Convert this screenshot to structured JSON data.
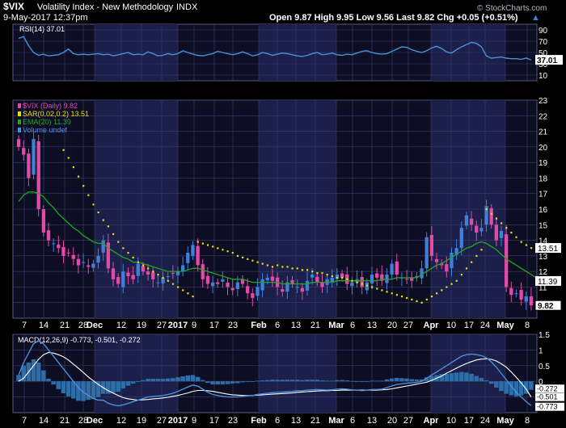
{
  "header": {
    "symbol": "$VIX",
    "name": "Volatility Index - New Methodology",
    "exchange": "INDX",
    "datetime": "9-May-2017 12:37pm",
    "quote": "Open 9.87  High 9.95  Low 9.56  Last 9.82  Chg +0.05 (+0.51%)",
    "quote_arrow": "▲",
    "watermark": "© StockCharts.com"
  },
  "colors": {
    "background": "#000000",
    "panel_bg": "#0d0d24",
    "band": "#1b1f4a",
    "grid": "#3a3f6a",
    "text": "#ffffff",
    "rsi_line": "#4a90d9",
    "candle_up": "#3f7fd8",
    "candle_down": "#e24aa8",
    "sar": "#e8e000",
    "ema": "#1fa81f",
    "macd_line": "#4a90d9",
    "signal_line": "#ffffff",
    "histogram": "#2e6ea8"
  },
  "chart_data": [
    {
      "type": "line",
      "panel": "rsi",
      "legend": [
        "RSI(14) 37.01"
      ],
      "ylim": [
        0,
        100
      ],
      "y_ticks": [
        10,
        30,
        50,
        70,
        90
      ],
      "last_value_label": "37.01",
      "series": [
        {
          "name": "RSI(14)",
          "values": [
            75,
            78,
            62,
            50,
            45,
            47,
            44,
            45,
            46,
            50,
            56,
            48,
            46,
            47,
            46,
            47,
            48,
            46,
            47,
            44,
            46,
            48,
            50,
            46,
            47,
            46,
            51,
            48,
            44,
            45,
            48,
            46,
            48,
            53,
            50,
            47,
            45,
            44,
            46,
            48,
            52,
            50,
            48,
            46,
            48,
            51,
            48,
            44,
            46,
            50,
            48,
            45,
            47,
            49,
            48,
            46,
            44,
            43,
            45,
            48,
            50,
            46,
            47,
            49,
            46,
            45,
            47,
            46,
            49,
            52,
            53,
            50,
            48,
            47,
            48,
            52,
            56,
            60,
            59,
            55,
            52,
            50,
            53,
            58,
            61,
            57,
            51,
            49,
            55,
            60,
            64,
            68,
            66,
            60,
            44,
            40,
            41,
            42,
            40,
            39,
            39,
            38,
            40,
            37
          ]
        }
      ]
    },
    {
      "type": "candlestick",
      "panel": "price",
      "legend": [
        "$VIX (Daily) 9.82",
        "SAR(0.02,0.2) 13.51",
        "EMA(20) 11.39",
        "Volume undef"
      ],
      "ylim": [
        9,
        23
      ],
      "y_ticks": [
        10,
        11,
        12,
        13,
        14,
        15,
        16,
        17,
        18,
        19,
        20,
        21,
        22,
        23
      ],
      "value_labels": [
        "13.51",
        "11.39",
        "9.82"
      ],
      "closes": [
        20.0,
        19.5,
        18.0,
        20.5,
        16.0,
        14.5,
        14.0,
        13.8,
        13.5,
        13.0,
        13.2,
        12.8,
        12.4,
        12.6,
        12.3,
        12.5,
        13.0,
        14.0,
        12.2,
        11.5,
        11.2,
        12.0,
        11.7,
        11.5,
        12.5,
        12.0,
        11.8,
        11.5,
        11.3,
        11.6,
        11.7,
        11.9,
        12.0,
        12.4,
        13.2,
        13.7,
        12.4,
        11.5,
        11.2,
        11.3,
        11.2,
        11.5,
        11.0,
        10.8,
        11.3,
        11.2,
        10.6,
        10.3,
        11.0,
        11.5,
        11.6,
        11.4,
        11.0,
        10.7,
        11.3,
        11.2,
        11.0,
        10.7,
        11.4,
        11.8,
        11.3,
        11.0,
        11.5,
        11.6,
        11.8,
        11.6,
        11.2,
        11.3,
        11.5,
        11.0,
        11.3,
        11.8,
        11.6,
        11.4,
        11.8,
        12.5,
        11.8,
        11.6,
        11.5,
        11.4,
        11.7,
        12.2,
        14.2,
        13.0,
        12.6,
        12.4,
        12.0,
        13.2,
        13.5,
        14.8,
        15.6,
        15.0,
        14.5,
        14.8,
        16.2,
        15.0,
        14.0,
        14.6,
        11.0,
        10.5,
        10.6,
        10.2,
        10.4,
        9.82
      ],
      "ema20": [
        16.5,
        16.9,
        17.1,
        17.1,
        17.0,
        16.8,
        16.4,
        16.1,
        15.7,
        15.4,
        15.1,
        14.8,
        14.6,
        14.3,
        14.1,
        13.9,
        13.8,
        13.8,
        13.5,
        13.3,
        13.1,
        12.9,
        12.8,
        12.6,
        12.6,
        12.5,
        12.4,
        12.3,
        12.2,
        12.1,
        12.0,
        12.0,
        12.0,
        12.0,
        12.1,
        12.2,
        12.2,
        12.1,
        12.0,
        11.9,
        11.8,
        11.7,
        11.6,
        11.5,
        11.5,
        11.5,
        11.4,
        11.3,
        11.3,
        11.3,
        11.3,
        11.3,
        11.3,
        11.2,
        11.2,
        11.2,
        11.2,
        11.2,
        11.2,
        11.3,
        11.3,
        11.3,
        11.3,
        11.3,
        11.4,
        11.4,
        11.4,
        11.4,
        11.4,
        11.4,
        11.4,
        11.4,
        11.4,
        11.5,
        11.5,
        11.5,
        11.6,
        11.6,
        11.6,
        11.6,
        11.6,
        11.8,
        12.0,
        12.2,
        12.4,
        12.5,
        12.7,
        12.9,
        13.1,
        13.3,
        13.5,
        13.6,
        13.8,
        13.9,
        13.8,
        13.6,
        13.4,
        13.1,
        12.8,
        12.6,
        12.4,
        12.2,
        12.0,
        11.8,
        11.6,
        11.39
      ],
      "sar": [
        null,
        null,
        null,
        null,
        null,
        null,
        null,
        null,
        null,
        19.8,
        19.3,
        18.7,
        18.1,
        17.5,
        16.9,
        16.3,
        15.8,
        15.3,
        14.9,
        14.4,
        13.9,
        13.5,
        13.2,
        12.9,
        12.6,
        12.4,
        12.2,
        12.0,
        11.8,
        11.6,
        11.4,
        11.2,
        11.0,
        10.8,
        10.6,
        10.4,
        13.9,
        13.8,
        13.7,
        13.6,
        13.5,
        13.4,
        13.3,
        13.2,
        13.0,
        12.9,
        12.8,
        12.7,
        12.6,
        12.5,
        12.4,
        12.3,
        12.4,
        12.3,
        12.3,
        12.2,
        12.2,
        12.1,
        12.1,
        12.0,
        11.9,
        11.9,
        11.8,
        11.7,
        11.6,
        11.6,
        11.5,
        11.4,
        11.3,
        11.2,
        11.1,
        11.0,
        10.9,
        10.8,
        10.7,
        10.6,
        10.5,
        10.4,
        10.3,
        10.2,
        10.1,
        10.0,
        10.2,
        10.4,
        10.6,
        10.8,
        11.0,
        11.2,
        11.4,
        11.8,
        12.2,
        12.6,
        13.0,
        13.4,
        16.0,
        15.7,
        15.4,
        15.1,
        14.8,
        14.5,
        14.2,
        13.9,
        13.7,
        13.51
      ]
    },
    {
      "type": "line",
      "panel": "macd",
      "legend": [
        "MACD(12,26,9) -0.773, -0.501, -0.272"
      ],
      "ylim": [
        -1.0,
        1.5
      ],
      "y_ticks": [
        -0.5,
        0.0,
        0.5,
        1.0,
        1.5
      ],
      "value_labels": [
        "-0.272",
        "-0.501",
        "-0.773"
      ],
      "series": [
        {
          "name": "MACD(12,26,9)",
          "values": [
            0.2,
            0.6,
            0.9,
            1.2,
            1.3,
            1.2,
            1.0,
            0.8,
            0.6,
            0.4,
            0.2,
            0.0,
            -0.2,
            -0.35,
            -0.45,
            -0.55,
            -0.6,
            -0.6,
            -0.7,
            -0.75,
            -0.78,
            -0.75,
            -0.7,
            -0.65,
            -0.6,
            -0.55,
            -0.5,
            -0.48,
            -0.47,
            -0.45,
            -0.42,
            -0.38,
            -0.32,
            -0.25,
            -0.18,
            -0.12,
            -0.15,
            -0.25,
            -0.35,
            -0.42,
            -0.45,
            -0.48,
            -0.5,
            -0.5,
            -0.5,
            -0.48,
            -0.46,
            -0.45,
            -0.42,
            -0.4,
            -0.38,
            -0.36,
            -0.35,
            -0.34,
            -0.33,
            -0.32,
            -0.3,
            -0.3,
            -0.28,
            -0.27,
            -0.26,
            -0.27,
            -0.28,
            -0.27,
            -0.25,
            -0.24,
            -0.25,
            -0.27,
            -0.28,
            -0.3,
            -0.28,
            -0.26,
            -0.26,
            -0.25,
            -0.2,
            -0.15,
            -0.1,
            -0.08,
            -0.06,
            -0.05,
            -0.03,
            0.0,
            0.1,
            0.2,
            0.3,
            0.4,
            0.5,
            0.6,
            0.7,
            0.8,
            0.85,
            0.87,
            0.85,
            0.82,
            0.75,
            0.62,
            0.45,
            0.25,
            0.05,
            -0.15,
            -0.35,
            -0.5,
            -0.65,
            -0.773
          ]
        },
        {
          "name": "Signal",
          "values": [
            0.0,
            0.1,
            0.3,
            0.5,
            0.7,
            0.85,
            0.92,
            0.9,
            0.85,
            0.78,
            0.68,
            0.55,
            0.42,
            0.28,
            0.14,
            0.02,
            -0.1,
            -0.2,
            -0.3,
            -0.38,
            -0.45,
            -0.52,
            -0.56,
            -0.58,
            -0.6,
            -0.59,
            -0.58,
            -0.56,
            -0.55,
            -0.53,
            -0.51,
            -0.48,
            -0.45,
            -0.41,
            -0.37,
            -0.32,
            -0.29,
            -0.29,
            -0.3,
            -0.32,
            -0.35,
            -0.38,
            -0.41,
            -0.43,
            -0.44,
            -0.45,
            -0.45,
            -0.45,
            -0.44,
            -0.43,
            -0.42,
            -0.41,
            -0.4,
            -0.39,
            -0.38,
            -0.37,
            -0.35,
            -0.34,
            -0.33,
            -0.32,
            -0.31,
            -0.3,
            -0.3,
            -0.29,
            -0.29,
            -0.28,
            -0.28,
            -0.28,
            -0.28,
            -0.28,
            -0.28,
            -0.28,
            -0.28,
            -0.27,
            -0.26,
            -0.24,
            -0.21,
            -0.18,
            -0.15,
            -0.12,
            -0.09,
            -0.06,
            -0.03,
            0.03,
            0.1,
            0.17,
            0.26,
            0.34,
            0.42,
            0.5,
            0.57,
            0.63,
            0.68,
            0.71,
            0.72,
            0.7,
            0.65,
            0.56,
            0.45,
            0.3,
            0.13,
            -0.05,
            -0.25,
            -0.501
          ]
        },
        {
          "name": "Histogram",
          "values": [
            0.2,
            0.5,
            0.6,
            0.7,
            0.6,
            0.35,
            0.08,
            -0.1,
            -0.25,
            -0.38,
            -0.48,
            -0.55,
            -0.62,
            -0.63,
            -0.59,
            -0.57,
            -0.5,
            -0.4,
            -0.4,
            -0.37,
            -0.33,
            -0.23,
            -0.14,
            -0.07,
            0.0,
            0.04,
            0.08,
            0.08,
            0.08,
            0.08,
            0.09,
            0.1,
            0.13,
            0.16,
            0.19,
            0.2,
            0.14,
            0.04,
            -0.05,
            -0.1,
            -0.1,
            -0.1,
            -0.09,
            -0.07,
            -0.06,
            -0.03,
            -0.01,
            0.0,
            0.02,
            0.03,
            0.04,
            0.05,
            0.05,
            0.05,
            0.05,
            0.05,
            0.05,
            0.04,
            0.05,
            0.05,
            0.05,
            0.03,
            0.02,
            0.02,
            0.04,
            0.04,
            0.03,
            0.01,
            0.0,
            -0.02,
            0.0,
            0.02,
            0.02,
            0.02,
            0.06,
            0.09,
            0.11,
            0.1,
            0.09,
            0.07,
            0.06,
            0.06,
            0.13,
            0.17,
            0.2,
            0.23,
            0.24,
            0.26,
            0.28,
            0.3,
            0.28,
            0.24,
            0.17,
            0.11,
            0.03,
            -0.08,
            -0.2,
            -0.31,
            -0.4,
            -0.45,
            -0.48,
            -0.45,
            -0.4,
            -0.272
          ]
        }
      ]
    },
    {
      "type": "axis",
      "x_labels": [
        "7",
        "14",
        "21",
        "28",
        "Dec",
        "12",
        "19",
        "27",
        "2017",
        "9",
        "17",
        "23",
        "Feb",
        "6",
        "13",
        "21",
        "Mar",
        "6",
        "13",
        "20",
        "27",
        "Apr",
        "10",
        "17",
        "24",
        "May",
        "8"
      ],
      "bold_labels": [
        "Dec",
        "2017",
        "Feb",
        "Mar",
        "Apr",
        "May"
      ]
    }
  ]
}
